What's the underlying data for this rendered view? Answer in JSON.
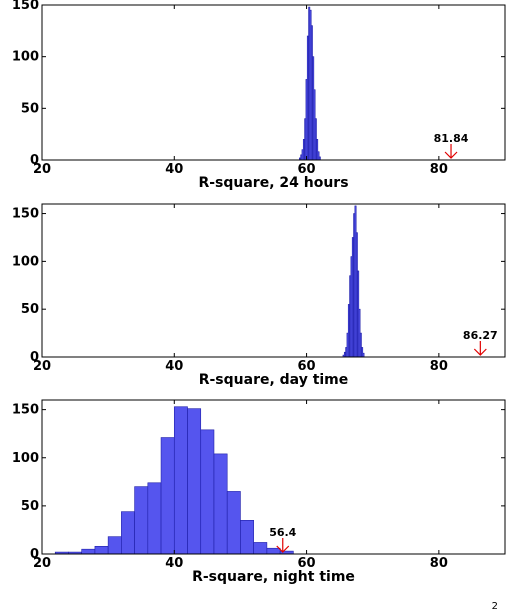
{
  "chart_data": [
    {
      "type": "bar",
      "title": "",
      "xlabel": "R-square, 24 hours",
      "ylabel": "",
      "xlim": [
        20,
        90
      ],
      "ylim": [
        0,
        150
      ],
      "xticks": [
        20,
        40,
        60,
        80
      ],
      "yticks": [
        0,
        50,
        100,
        150
      ],
      "grid": false,
      "bin_width": 0.2,
      "bins": [
        {
          "x": 59.0,
          "y": 2
        },
        {
          "x": 59.2,
          "y": 5
        },
        {
          "x": 59.4,
          "y": 10
        },
        {
          "x": 59.6,
          "y": 20
        },
        {
          "x": 59.8,
          "y": 40
        },
        {
          "x": 60.0,
          "y": 78
        },
        {
          "x": 60.2,
          "y": 120
        },
        {
          "x": 60.4,
          "y": 148
        },
        {
          "x": 60.6,
          "y": 145
        },
        {
          "x": 60.8,
          "y": 130
        },
        {
          "x": 61.0,
          "y": 100
        },
        {
          "x": 61.2,
          "y": 68
        },
        {
          "x": 61.4,
          "y": 40
        },
        {
          "x": 61.6,
          "y": 20
        },
        {
          "x": 61.8,
          "y": 8
        },
        {
          "x": 62.0,
          "y": 3
        }
      ],
      "annotation": {
        "label": "81.84",
        "x": 81.84,
        "color": "#e00000"
      }
    },
    {
      "type": "bar",
      "title": "",
      "xlabel": "R-square, day time",
      "ylabel": "",
      "xlim": [
        20,
        90
      ],
      "ylim": [
        0,
        160
      ],
      "xticks": [
        20,
        40,
        60,
        80
      ],
      "yticks": [
        0,
        50,
        100,
        150
      ],
      "grid": false,
      "bin_width": 0.2,
      "bins": [
        {
          "x": 65.6,
          "y": 2
        },
        {
          "x": 65.8,
          "y": 5
        },
        {
          "x": 66.0,
          "y": 10
        },
        {
          "x": 66.2,
          "y": 25
        },
        {
          "x": 66.4,
          "y": 55
        },
        {
          "x": 66.6,
          "y": 85
        },
        {
          "x": 66.8,
          "y": 105
        },
        {
          "x": 67.0,
          "y": 125
        },
        {
          "x": 67.2,
          "y": 150
        },
        {
          "x": 67.4,
          "y": 158
        },
        {
          "x": 67.6,
          "y": 130
        },
        {
          "x": 67.8,
          "y": 90
        },
        {
          "x": 68.0,
          "y": 50
        },
        {
          "x": 68.2,
          "y": 25
        },
        {
          "x": 68.4,
          "y": 10
        },
        {
          "x": 68.6,
          "y": 4
        }
      ],
      "annotation": {
        "label": "86.27",
        "x": 86.27,
        "color": "#e00000"
      }
    },
    {
      "type": "bar",
      "title": "",
      "xlabel": "R-square, night time",
      "ylabel": "",
      "xlim": [
        20,
        90
      ],
      "ylim": [
        0,
        160
      ],
      "xticks": [
        20,
        40,
        60,
        80
      ],
      "yticks": [
        0,
        50,
        100,
        150
      ],
      "grid": false,
      "bin_width": 2,
      "bins": [
        {
          "x": 23,
          "y": 2
        },
        {
          "x": 25,
          "y": 2
        },
        {
          "x": 27,
          "y": 5
        },
        {
          "x": 29,
          "y": 8
        },
        {
          "x": 31,
          "y": 18
        },
        {
          "x": 33,
          "y": 44
        },
        {
          "x": 35,
          "y": 70
        },
        {
          "x": 37,
          "y": 74
        },
        {
          "x": 39,
          "y": 121
        },
        {
          "x": 41,
          "y": 153
        },
        {
          "x": 43,
          "y": 151
        },
        {
          "x": 45,
          "y": 129
        },
        {
          "x": 47,
          "y": 104
        },
        {
          "x": 49,
          "y": 65
        },
        {
          "x": 51,
          "y": 35
        },
        {
          "x": 53,
          "y": 12
        },
        {
          "x": 55,
          "y": 6
        },
        {
          "x": 57,
          "y": 3
        }
      ],
      "annotation": {
        "label": "56.4",
        "x": 56.4,
        "color": "#e00000"
      }
    }
  ],
  "page_mark": "2"
}
